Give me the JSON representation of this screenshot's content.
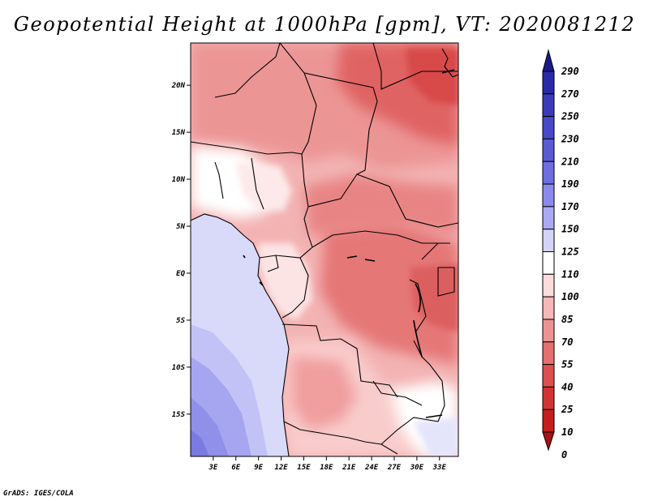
{
  "title": "Geopotential Height at 1000hPa [gpm], VT: 2020081212",
  "credit": "GrADS: IGES/COLA",
  "map": {
    "variable": "Geopotential Height",
    "level": "1000hPa",
    "units": "gpm",
    "valid_time": "2020081212",
    "lon_range": [
      0,
      35.5
    ],
    "lat_range": [
      -19.5,
      24.5
    ],
    "lat_ticks": [
      {
        "value": 20,
        "label": "20N"
      },
      {
        "value": 15,
        "label": "15N"
      },
      {
        "value": 10,
        "label": "10N"
      },
      {
        "value": 5,
        "label": "5N"
      },
      {
        "value": 0,
        "label": "EQ"
      },
      {
        "value": -5,
        "label": "5S"
      },
      {
        "value": -10,
        "label": "10S"
      },
      {
        "value": -15,
        "label": "15S"
      }
    ],
    "lon_ticks": [
      {
        "value": 3,
        "label": "3E"
      },
      {
        "value": 6,
        "label": "6E"
      },
      {
        "value": 9,
        "label": "9E"
      },
      {
        "value": 12,
        "label": "12E"
      },
      {
        "value": 15,
        "label": "15E"
      },
      {
        "value": 18,
        "label": "18E"
      },
      {
        "value": 21,
        "label": "21E"
      },
      {
        "value": 24,
        "label": "24E"
      },
      {
        "value": 27,
        "label": "27E"
      },
      {
        "value": 30,
        "label": "30E"
      },
      {
        "value": 33,
        "label": "33E"
      }
    ]
  },
  "colorbar": {
    "levels": [
      "290",
      "270",
      "250",
      "230",
      "210",
      "190",
      "170",
      "150",
      "125",
      "110",
      "100",
      "85",
      "70",
      "55",
      "40",
      "25",
      "10",
      "0"
    ],
    "colors": [
      "#1a1a8c",
      "#2a2aa8",
      "#3a3ab8",
      "#4848c8",
      "#5a5ad4",
      "#6e6ee0",
      "#8a8aec",
      "#aaaaf4",
      "#d4d4f8",
      "#ffffff",
      "#fbdcdc",
      "#f4b8b8",
      "#ec9494",
      "#e47070",
      "#dc5050",
      "#d23434",
      "#c41e1e",
      "#aa1010"
    ]
  }
}
